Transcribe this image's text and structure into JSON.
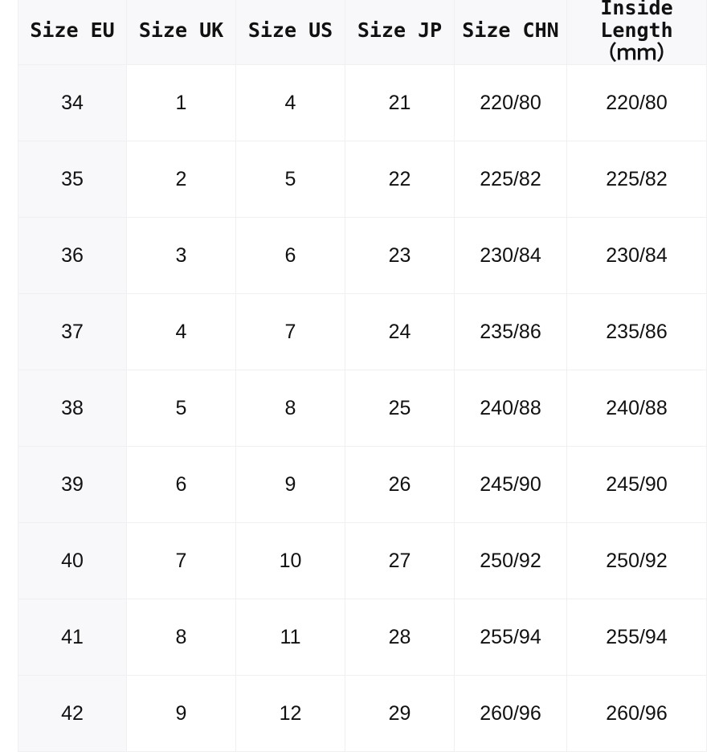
{
  "table": {
    "headers": [
      "Size EU",
      "Size UK",
      "Size US",
      "Size JP",
      "Size CHN",
      "Inside Length\n（ｍｍ）"
    ],
    "rows": [
      [
        "34",
        "1",
        "4",
        "21",
        "220/80",
        "220/80"
      ],
      [
        "35",
        "2",
        "5",
        "22",
        "225/82",
        "225/82"
      ],
      [
        "36",
        "3",
        "6",
        "23",
        "230/84",
        "230/84"
      ],
      [
        "37",
        "4",
        "7",
        "24",
        "235/86",
        "235/86"
      ],
      [
        "38",
        "5",
        "8",
        "25",
        "240/88",
        "240/88"
      ],
      [
        "39",
        "6",
        "9",
        "26",
        "245/90",
        "245/90"
      ],
      [
        "40",
        "7",
        "10",
        "27",
        "250/92",
        "250/92"
      ],
      [
        "41",
        "8",
        "11",
        "28",
        "255/94",
        "255/94"
      ],
      [
        "42",
        "9",
        "12",
        "29",
        "260/96",
        "260/96"
      ]
    ]
  },
  "colors": {
    "header_bg": "#f8f8fa",
    "border": "#f0f0f2",
    "text": "#111111"
  }
}
